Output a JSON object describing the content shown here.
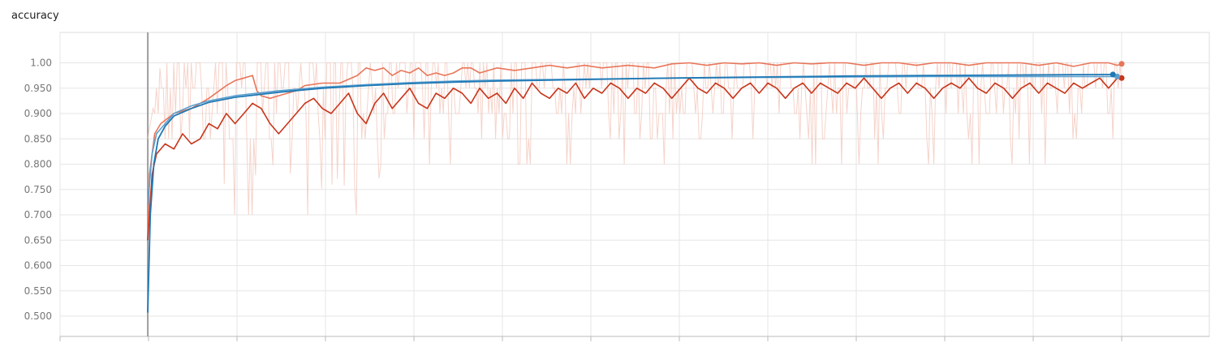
{
  "chart_data": {
    "type": "line",
    "title": "accuracy",
    "xlabel": "",
    "ylabel": "",
    "ylim": [
      0.46,
      1.06
    ],
    "yticks": [
      "0.500",
      "0.550",
      "0.600",
      "0.650",
      "0.700",
      "0.750",
      "0.800",
      "0.850",
      "0.900",
      "0.950",
      "1.00"
    ],
    "grid": true,
    "x_gridline_count": 14,
    "x_tick_labels": [],
    "series": [
      {
        "color": "#e8765a",
        "width": 1.6,
        "opacity": 1.0,
        "points": [
          [
            0.0,
            0.65
          ],
          [
            0.2,
            0.78
          ],
          [
            0.8,
            0.86
          ],
          [
            1.5,
            0.88
          ],
          [
            3,
            0.9
          ],
          [
            5,
            0.91
          ],
          [
            7,
            0.93
          ],
          [
            9,
            0.955
          ],
          [
            10,
            0.965
          ],
          [
            11,
            0.97
          ],
          [
            12,
            0.975
          ],
          [
            12.5,
            0.945
          ],
          [
            13,
            0.935
          ],
          [
            14,
            0.93
          ],
          [
            15,
            0.935
          ],
          [
            16,
            0.94
          ],
          [
            17,
            0.945
          ],
          [
            18,
            0.955
          ],
          [
            20,
            0.96
          ],
          [
            22,
            0.96
          ],
          [
            24,
            0.975
          ],
          [
            25,
            0.99
          ],
          [
            26,
            0.985
          ],
          [
            27,
            0.99
          ],
          [
            28,
            0.975
          ],
          [
            29,
            0.985
          ],
          [
            30,
            0.98
          ],
          [
            31,
            0.99
          ],
          [
            32,
            0.975
          ],
          [
            33,
            0.98
          ],
          [
            34,
            0.975
          ],
          [
            35,
            0.98
          ],
          [
            36,
            0.99
          ],
          [
            37,
            0.99
          ],
          [
            38,
            0.98
          ],
          [
            39,
            0.985
          ],
          [
            40,
            0.99
          ],
          [
            42,
            0.985
          ],
          [
            44,
            0.99
          ],
          [
            46,
            0.995
          ],
          [
            48,
            0.99
          ],
          [
            50,
            0.995
          ],
          [
            52,
            0.99
          ],
          [
            55,
            0.995
          ],
          [
            58,
            0.99
          ],
          [
            60,
            0.998
          ],
          [
            62,
            1.0
          ],
          [
            64,
            0.995
          ],
          [
            66,
            1.0
          ],
          [
            68,
            0.998
          ],
          [
            70,
            1.0
          ],
          [
            72,
            0.995
          ],
          [
            74,
            1.0
          ],
          [
            76,
            0.998
          ],
          [
            78,
            1.0
          ],
          [
            80,
            1.0
          ],
          [
            82,
            0.995
          ],
          [
            84,
            1.0
          ],
          [
            86,
            1.0
          ],
          [
            88,
            0.995
          ],
          [
            90,
            1.0
          ],
          [
            92,
            1.0
          ],
          [
            94,
            0.995
          ],
          [
            96,
            1.0
          ],
          [
            98,
            1.0
          ],
          [
            100,
            1.0
          ],
          [
            102,
            0.995
          ],
          [
            104,
            1.0
          ],
          [
            106,
            0.993
          ],
          [
            108,
            1.0
          ],
          [
            110,
            1.0
          ],
          [
            111,
            0.995
          ],
          [
            111.5,
            0.998
          ]
        ]
      },
      {
        "color": "#c8361b",
        "width": 1.6,
        "opacity": 1.0,
        "points": [
          [
            0.0,
            0.65
          ],
          [
            0.5,
            0.78
          ],
          [
            1,
            0.82
          ],
          [
            2,
            0.84
          ],
          [
            3,
            0.83
          ],
          [
            4,
            0.86
          ],
          [
            5,
            0.84
          ],
          [
            6,
            0.85
          ],
          [
            7,
            0.88
          ],
          [
            8,
            0.87
          ],
          [
            9,
            0.9
          ],
          [
            10,
            0.88
          ],
          [
            11,
            0.9
          ],
          [
            12,
            0.92
          ],
          [
            13,
            0.91
          ],
          [
            14,
            0.88
          ],
          [
            15,
            0.86
          ],
          [
            16,
            0.88
          ],
          [
            17,
            0.9
          ],
          [
            18,
            0.92
          ],
          [
            19,
            0.93
          ],
          [
            20,
            0.91
          ],
          [
            21,
            0.9
          ],
          [
            22,
            0.92
          ],
          [
            23,
            0.94
          ],
          [
            24,
            0.9
          ],
          [
            25,
            0.88
          ],
          [
            26,
            0.92
          ],
          [
            27,
            0.94
          ],
          [
            28,
            0.91
          ],
          [
            29,
            0.93
          ],
          [
            30,
            0.95
          ],
          [
            31,
            0.92
          ],
          [
            32,
            0.91
          ],
          [
            33,
            0.94
          ],
          [
            34,
            0.93
          ],
          [
            35,
            0.95
          ],
          [
            36,
            0.94
          ],
          [
            37,
            0.92
          ],
          [
            38,
            0.95
          ],
          [
            39,
            0.93
          ],
          [
            40,
            0.94
          ],
          [
            41,
            0.92
          ],
          [
            42,
            0.95
          ],
          [
            43,
            0.93
          ],
          [
            44,
            0.96
          ],
          [
            45,
            0.94
          ],
          [
            46,
            0.93
          ],
          [
            47,
            0.95
          ],
          [
            48,
            0.94
          ],
          [
            49,
            0.96
          ],
          [
            50,
            0.93
          ],
          [
            51,
            0.95
          ],
          [
            52,
            0.94
          ],
          [
            53,
            0.96
          ],
          [
            54,
            0.95
          ],
          [
            55,
            0.93
          ],
          [
            56,
            0.95
          ],
          [
            57,
            0.94
          ],
          [
            58,
            0.96
          ],
          [
            59,
            0.95
          ],
          [
            60,
            0.93
          ],
          [
            61,
            0.95
          ],
          [
            62,
            0.97
          ],
          [
            63,
            0.95
          ],
          [
            64,
            0.94
          ],
          [
            65,
            0.96
          ],
          [
            66,
            0.95
          ],
          [
            67,
            0.93
          ],
          [
            68,
            0.95
          ],
          [
            69,
            0.96
          ],
          [
            70,
            0.94
          ],
          [
            71,
            0.96
          ],
          [
            72,
            0.95
          ],
          [
            73,
            0.93
          ],
          [
            74,
            0.95
          ],
          [
            75,
            0.96
          ],
          [
            76,
            0.94
          ],
          [
            77,
            0.96
          ],
          [
            78,
            0.95
          ],
          [
            79,
            0.94
          ],
          [
            80,
            0.96
          ],
          [
            81,
            0.95
          ],
          [
            82,
            0.97
          ],
          [
            83,
            0.95
          ],
          [
            84,
            0.93
          ],
          [
            85,
            0.95
          ],
          [
            86,
            0.96
          ],
          [
            87,
            0.94
          ],
          [
            88,
            0.96
          ],
          [
            89,
            0.95
          ],
          [
            90,
            0.93
          ],
          [
            91,
            0.95
          ],
          [
            92,
            0.96
          ],
          [
            93,
            0.95
          ],
          [
            94,
            0.97
          ],
          [
            95,
            0.95
          ],
          [
            96,
            0.94
          ],
          [
            97,
            0.96
          ],
          [
            98,
            0.95
          ],
          [
            99,
            0.93
          ],
          [
            100,
            0.95
          ],
          [
            101,
            0.96
          ],
          [
            102,
            0.94
          ],
          [
            103,
            0.96
          ],
          [
            104,
            0.95
          ],
          [
            105,
            0.94
          ],
          [
            106,
            0.96
          ],
          [
            107,
            0.95
          ],
          [
            108,
            0.96
          ],
          [
            109,
            0.97
          ],
          [
            110,
            0.95
          ],
          [
            111,
            0.97
          ],
          [
            111.5,
            0.97
          ]
        ]
      },
      {
        "color": "#5aa0d0",
        "width": 1.6,
        "opacity": 1.0,
        "points": [
          [
            0.0,
            0.72
          ],
          [
            0.5,
            0.82
          ],
          [
            1,
            0.86
          ],
          [
            2,
            0.88
          ],
          [
            3,
            0.9
          ],
          [
            5,
            0.915
          ],
          [
            7,
            0.925
          ],
          [
            10,
            0.935
          ],
          [
            15,
            0.945
          ],
          [
            20,
            0.952
          ],
          [
            25,
            0.957
          ],
          [
            30,
            0.961
          ],
          [
            35,
            0.964
          ],
          [
            40,
            0.966
          ],
          [
            50,
            0.968
          ],
          [
            60,
            0.97
          ],
          [
            70,
            0.971
          ],
          [
            80,
            0.972
          ],
          [
            90,
            0.973
          ],
          [
            100,
            0.973
          ],
          [
            110,
            0.973
          ],
          [
            111,
            0.973
          ]
        ]
      },
      {
        "color": "#1f78b4",
        "width": 1.8,
        "opacity": 1.0,
        "points": [
          [
            0.0,
            0.507
          ],
          [
            0.3,
            0.7
          ],
          [
            0.7,
            0.8
          ],
          [
            1.2,
            0.85
          ],
          [
            2,
            0.875
          ],
          [
            3,
            0.895
          ],
          [
            5,
            0.91
          ],
          [
            7,
            0.922
          ],
          [
            10,
            0.932
          ],
          [
            15,
            0.942
          ],
          [
            20,
            0.95
          ],
          [
            25,
            0.955
          ],
          [
            30,
            0.959
          ],
          [
            35,
            0.962
          ],
          [
            40,
            0.964
          ],
          [
            50,
            0.967
          ],
          [
            60,
            0.97
          ],
          [
            70,
            0.972
          ],
          [
            80,
            0.974
          ],
          [
            90,
            0.975
          ],
          [
            100,
            0.976
          ],
          [
            110,
            0.977
          ],
          [
            110.5,
            0.977
          ]
        ]
      }
    ],
    "end_markers": [
      {
        "color": "#e8765a",
        "x": 111.5,
        "y": 0.998
      },
      {
        "color": "#c8361b",
        "x": 111.5,
        "y": 0.97
      },
      {
        "color": "#5aa0d0",
        "x": 111,
        "y": 0.973
      },
      {
        "color": "#1f78b4",
        "x": 110.5,
        "y": 0.977
      }
    ],
    "raw_noise": {
      "color": "#f2c4b8",
      "description_values": {
        "x_start": 0,
        "x_end": 111.5,
        "low_min": 0.7,
        "high": 1.0
      }
    }
  }
}
